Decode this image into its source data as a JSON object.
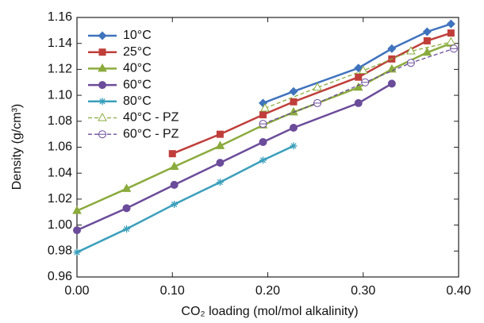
{
  "chart_data": {
    "type": "line",
    "xlabel": "CO₂ loading (mol/mol alkalinity)",
    "ylabel": "Density (g/cm³)",
    "xlim": [
      0,
      0.4
    ],
    "ylim": [
      0.96,
      1.16
    ],
    "xticks": [
      {
        "value": 0,
        "label": "0.00"
      },
      {
        "value": 0.1,
        "label": "0.10"
      },
      {
        "value": 0.2,
        "label": "0.20"
      },
      {
        "value": 0.3,
        "label": "0.30"
      },
      {
        "value": 0.4,
        "label": "0.40"
      }
    ],
    "yticks": [
      0.96,
      0.98,
      {
        "value": 1.0,
        "label": "1.00"
      },
      1.02,
      1.04,
      1.06,
      1.08,
      {
        "value": 1.1,
        "label": "1.10"
      },
      1.12,
      1.14,
      1.16
    ],
    "legend": "upper left",
    "series": [
      {
        "name": "10°C",
        "color": "#3f73bd",
        "marker": "diamond",
        "dash": false,
        "x": [
          0.195,
          0.227,
          0.295,
          0.33,
          0.367,
          0.392
        ],
        "values": [
          1.094,
          1.103,
          1.121,
          1.136,
          1.149,
          1.155
        ]
      },
      {
        "name": "25°C",
        "color": "#bf3e3a",
        "marker": "square",
        "dash": false,
        "x": [
          0.1,
          0.15,
          0.195,
          0.227,
          0.295,
          0.33,
          0.367,
          0.392
        ],
        "values": [
          1.055,
          1.07,
          1.085,
          1.095,
          1.114,
          1.128,
          1.142,
          1.148
        ]
      },
      {
        "name": "40°C",
        "color": "#8bab3d",
        "marker": "triangle",
        "dash": false,
        "x": [
          0,
          0.052,
          0.102,
          0.15,
          0.195,
          0.227,
          0.295,
          0.33,
          0.367,
          0.392
        ],
        "values": [
          1.011,
          1.028,
          1.045,
          1.061,
          1.077,
          1.087,
          1.106,
          1.12,
          1.133,
          1.14
        ]
      },
      {
        "name": "60°C",
        "color": "#6b4c9a",
        "marker": "circle",
        "dash": false,
        "x": [
          0,
          0.052,
          0.102,
          0.15,
          0.195,
          0.227,
          0.295,
          0.33
        ],
        "values": [
          0.996,
          1.013,
          1.031,
          1.048,
          1.064,
          1.075,
          1.094,
          1.109
        ]
      },
      {
        "name": "80°C",
        "color": "#3a9fbb",
        "marker": "asterisk",
        "dash": false,
        "x": [
          0,
          0.052,
          0.102,
          0.15,
          0.195,
          0.227
        ],
        "values": [
          0.979,
          0.997,
          1.016,
          1.033,
          1.05,
          1.061
        ]
      },
      {
        "name": "40°C - PZ",
        "color": "#8bab3d",
        "marker": "open-triangle",
        "dash": true,
        "x": [
          0.197,
          0.252,
          0.3,
          0.35,
          0.392
        ],
        "values": [
          1.09,
          1.106,
          1.119,
          1.134,
          1.141
        ]
      },
      {
        "name": "60°C - PZ",
        "color": "#6b4c9a",
        "marker": "open-circle",
        "dash": true,
        "x": [
          0.195,
          0.252,
          0.302,
          0.35,
          0.395
        ],
        "values": [
          1.078,
          1.094,
          1.11,
          1.125,
          1.136
        ]
      }
    ]
  }
}
